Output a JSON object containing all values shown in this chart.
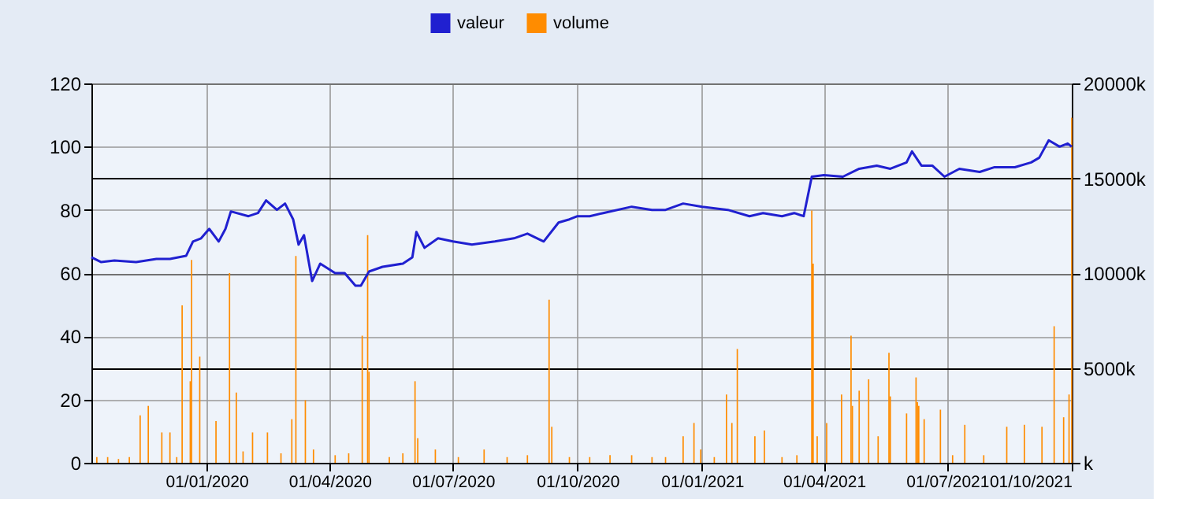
{
  "chart_data": {
    "type": "line",
    "legend": "top",
    "grid": true,
    "xlim": [
      "2019-10-08",
      "2021-10-01"
    ],
    "xticks": [
      {
        "value": "2020-01-01",
        "label": "01/01/2020"
      },
      {
        "value": "2020-04-01",
        "label": "01/04/2020"
      },
      {
        "value": "2020-07-01",
        "label": "01/07/2020"
      },
      {
        "value": "2020-10-01",
        "label": "01/10/2020"
      },
      {
        "value": "2021-01-01",
        "label": "01/01/2021"
      },
      {
        "value": "2021-04-01",
        "label": "01/04/2021"
      },
      {
        "value": "2021-07-01",
        "label": "01/07/2021"
      },
      {
        "value": "2021-10-01",
        "label": "01/10/2021"
      }
    ],
    "ylim": [
      0,
      120
    ],
    "yticks": [
      0,
      20,
      40,
      60,
      80,
      100,
      120
    ],
    "y2lim": [
      0,
      20000
    ],
    "y2ticks": [
      {
        "value": 0,
        "label": "k"
      },
      {
        "value": 5000,
        "label": "5000k"
      },
      {
        "value": 10000,
        "label": "10000k"
      },
      {
        "value": 15000,
        "label": "15000k"
      },
      {
        "value": 20000,
        "label": "20000k"
      }
    ],
    "series": [
      {
        "name": "valeur",
        "color": "#2020d0",
        "x": [
          "2019-10-08",
          "2019-10-15",
          "2019-10-25",
          "2019-11-10",
          "2019-11-25",
          "2019-12-05",
          "2019-12-17",
          "2019-12-22",
          "2019-12-28",
          "2020-01-03",
          "2020-01-10",
          "2020-01-15",
          "2020-01-19",
          "2020-02-01",
          "2020-02-08",
          "2020-02-14",
          "2020-02-22",
          "2020-02-28",
          "2020-03-05",
          "2020-03-09",
          "2020-03-13",
          "2020-03-19",
          "2020-03-25",
          "2020-04-05",
          "2020-04-12",
          "2020-04-20",
          "2020-04-24",
          "2020-04-30",
          "2020-05-10",
          "2020-05-25",
          "2020-06-01",
          "2020-06-04",
          "2020-06-10",
          "2020-06-20",
          "2020-07-01",
          "2020-07-15",
          "2020-08-01",
          "2020-08-15",
          "2020-08-25",
          "2020-09-06",
          "2020-09-17",
          "2020-09-25",
          "2020-10-01",
          "2020-10-10",
          "2020-10-20",
          "2020-11-10",
          "2020-11-25",
          "2020-12-05",
          "2020-12-18",
          "2021-01-01",
          "2021-01-20",
          "2021-02-05",
          "2021-02-15",
          "2021-03-01",
          "2021-03-10",
          "2021-03-17",
          "2021-03-23",
          "2021-04-01",
          "2021-04-15",
          "2021-04-27",
          "2021-05-10",
          "2021-05-20",
          "2021-06-01",
          "2021-06-05",
          "2021-06-12",
          "2021-06-20",
          "2021-06-29",
          "2021-07-10",
          "2021-07-25",
          "2021-08-05",
          "2021-08-20",
          "2021-09-01",
          "2021-09-07",
          "2021-09-14",
          "2021-09-22",
          "2021-09-28",
          "2021-10-01"
        ],
        "values": [
          65,
          63.5,
          64,
          63.5,
          64.5,
          64.5,
          65.5,
          70,
          71,
          74,
          70,
          74,
          79.5,
          78,
          79,
          83,
          80,
          82,
          77,
          69,
          72,
          57.5,
          63,
          60,
          60,
          56,
          56,
          60.5,
          62,
          63,
          65,
          73,
          68,
          71,
          70,
          69,
          70,
          71,
          72.5,
          70,
          76,
          77,
          78,
          78,
          79,
          81,
          80,
          80,
          82,
          81,
          80,
          78,
          79,
          78,
          79,
          78,
          90.5,
          91,
          90.5,
          93,
          94,
          93,
          95,
          98.5,
          94,
          94,
          90.5,
          93,
          92,
          93.5,
          93.5,
          95,
          96.5,
          102,
          100,
          101,
          100
        ]
      },
      {
        "name": "volume",
        "type": "bar",
        "axis": "y2",
        "color": "#ff8c00",
        "x": [
          "2019-10-12",
          "2019-10-20",
          "2019-10-28",
          "2019-11-05",
          "2019-11-13",
          "2019-11-19",
          "2019-11-29",
          "2019-12-05",
          "2019-12-10",
          "2019-12-14",
          "2019-12-20",
          "2019-12-21",
          "2019-12-27",
          "2020-01-08",
          "2020-01-18",
          "2020-01-23",
          "2020-01-28",
          "2020-02-04",
          "2020-02-15",
          "2020-02-25",
          "2020-03-04",
          "2020-03-07",
          "2020-03-14",
          "2020-03-20",
          "2020-04-05",
          "2020-04-15",
          "2020-04-25",
          "2020-04-29",
          "2020-04-30",
          "2020-05-15",
          "2020-05-25",
          "2020-06-03",
          "2020-06-05",
          "2020-06-18",
          "2020-07-05",
          "2020-07-24",
          "2020-08-10",
          "2020-08-25",
          "2020-09-10",
          "2020-09-12",
          "2020-09-25",
          "2020-10-10",
          "2020-10-25",
          "2020-11-10",
          "2020-11-25",
          "2020-12-05",
          "2020-12-18",
          "2020-12-26",
          "2020-12-31",
          "2021-01-10",
          "2021-01-19",
          "2021-01-23",
          "2021-01-27",
          "2021-02-09",
          "2021-02-16",
          "2021-03-01",
          "2021-03-12",
          "2021-03-23",
          "2021-03-24",
          "2021-03-27",
          "2021-04-03",
          "2021-04-14",
          "2021-04-21",
          "2021-04-22",
          "2021-04-27",
          "2021-05-04",
          "2021-05-11",
          "2021-05-19",
          "2021-05-20",
          "2021-06-01",
          "2021-06-08",
          "2021-06-09",
          "2021-06-10",
          "2021-06-14",
          "2021-06-26",
          "2021-07-05",
          "2021-07-14",
          "2021-07-28",
          "2021-08-14",
          "2021-08-27",
          "2021-09-09",
          "2021-09-18",
          "2021-09-25",
          "2021-09-29",
          "2021-10-01"
        ],
        "values": [
          300,
          300,
          200,
          300,
          2500,
          3000,
          1600,
          1600,
          300,
          8300,
          4300,
          10700,
          5600,
          2200,
          10000,
          3700,
          600,
          1600,
          1600,
          500,
          2300,
          10900,
          3300,
          700,
          400,
          500,
          6700,
          12000,
          4800,
          300,
          500,
          4300,
          1300,
          700,
          300,
          700,
          300,
          400,
          8600,
          1900,
          300,
          300,
          400,
          400,
          300,
          300,
          1400,
          2100,
          700,
          300,
          3600,
          2100,
          6000,
          1400,
          1700,
          300,
          400,
          13300,
          10500,
          1400,
          2100,
          3600,
          6700,
          3000,
          3800,
          4400,
          1400,
          5800,
          3500,
          2600,
          4500,
          3200,
          3000,
          2300,
          2800,
          400,
          2000,
          400,
          1900,
          2000,
          1900,
          7200,
          2400,
          3600,
          18200
        ]
      }
    ]
  }
}
